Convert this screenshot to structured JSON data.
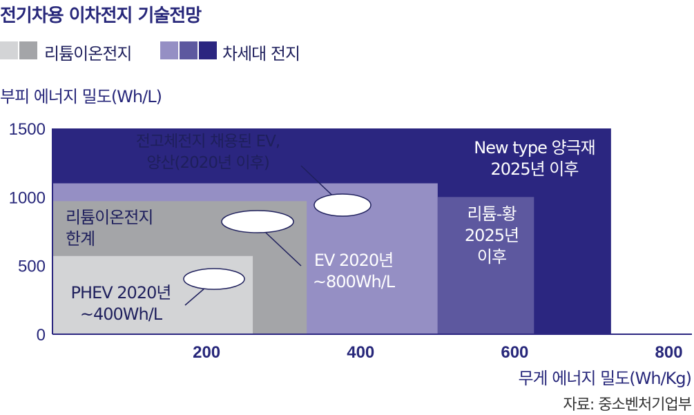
{
  "title": "전기차용 이차전지 기술전망",
  "legend": {
    "groups": [
      {
        "label": "리튬이온전지",
        "colors": [
          "#d3d4d6",
          "#a4a5a8"
        ]
      },
      {
        "label": "차세대 전지",
        "colors": [
          "#958fc4",
          "#5d589f",
          "#2b2680"
        ]
      }
    ]
  },
  "y_axis_label": "부피 에너지 밀도(Wh/L)",
  "x_axis_label": "무게 에너지 밀도(Wh/Kg)",
  "source": "자료: 중소벤처기업부",
  "chart_data": {
    "type": "area",
    "xlabel": "무게 에너지 밀도(Wh/Kg)",
    "ylabel": "부피 에너지 밀도(Wh/L)",
    "xlim": [
      0,
      830
    ],
    "ylim": [
      0,
      1500
    ],
    "x_ticks": [
      200,
      400,
      600,
      800
    ],
    "y_ticks": [
      0,
      500,
      1000,
      1500
    ],
    "regions": [
      {
        "name": "New type 양극재 2025년 이후",
        "x_max": 725,
        "y_max": 1500,
        "color": "#2b2680"
      },
      {
        "name": "전고체전지 채용된 EV, 양산(2020년 이후)",
        "x_max": 500,
        "y_max": 1100,
        "color": "#958fc4"
      },
      {
        "name": "리튬-황 2025년 이후",
        "x_range": [
          500,
          625
        ],
        "y_max": 1000,
        "color": "#5d589f"
      },
      {
        "name": "리튬이온전지 한계",
        "x_max": 330,
        "y_max": 970,
        "color": "#a4a5a8"
      },
      {
        "name": "PHEV 2020년 ~400Wh/L",
        "x_max": 260,
        "y_max": 570,
        "color": "#d3d4d6"
      }
    ],
    "annotations": [
      {
        "lines": [
          "전고체전지 채용된 EV,",
          "양산(2020년 이후)"
        ],
        "color": "#1e1f5c"
      },
      {
        "lines": [
          "New type 양극재",
          "2025년 이후"
        ],
        "color": "#ffffff"
      },
      {
        "lines": [
          "리튬이온전지",
          "한계"
        ],
        "color": "#1e1f5c"
      },
      {
        "lines": [
          "리튬-황",
          "2025년",
          "이후"
        ],
        "color": "#ffffff"
      },
      {
        "lines": [
          "EV 2020년",
          "~800Wh/L"
        ],
        "color": "#ffffff"
      },
      {
        "lines": [
          "PHEV 2020년",
          "~400Wh/L"
        ],
        "color": "#1e1f5c"
      }
    ],
    "grid": false
  }
}
